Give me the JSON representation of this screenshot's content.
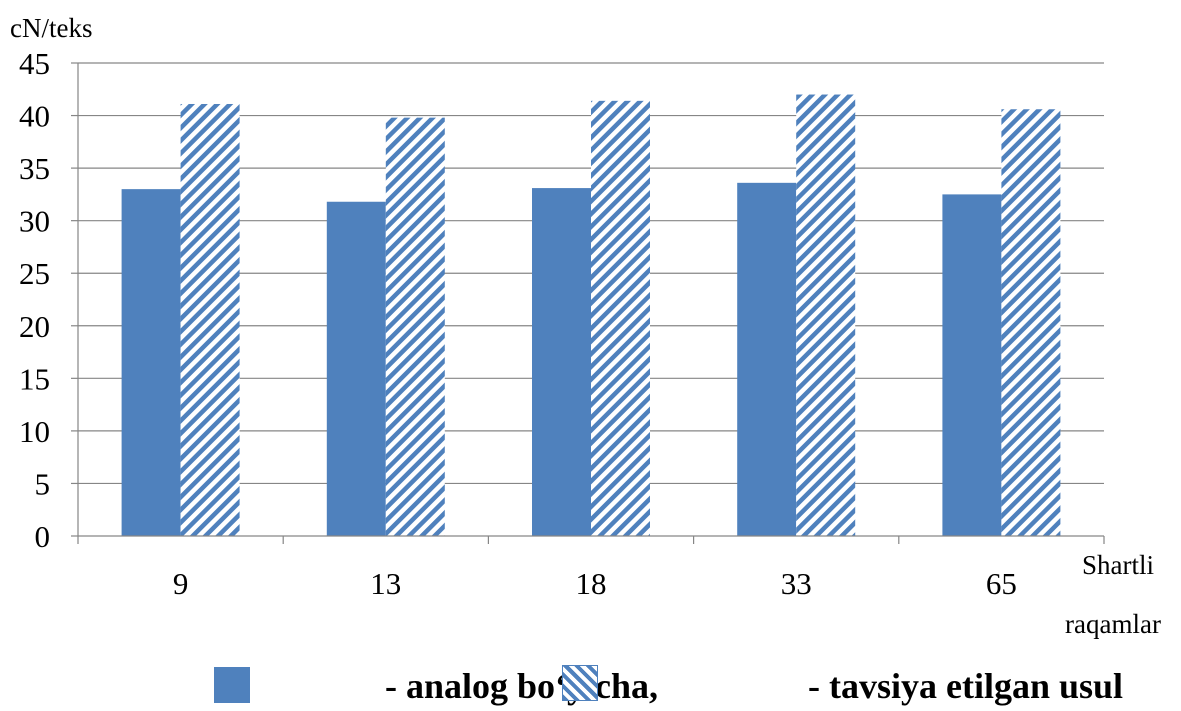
{
  "chart_data": {
    "type": "bar",
    "unit_label": "cN/teks",
    "xlabel_line1": "Shartli",
    "xlabel_line2": "raqamlar",
    "categories": [
      "9",
      "13",
      "18",
      "33",
      "65"
    ],
    "series": [
      {
        "values": [
          33.0,
          31.8,
          33.1,
          33.6,
          32.5
        ],
        "color": "#4f81bd",
        "pattern": "solid"
      },
      {
        "values": [
          41.1,
          39.8,
          41.4,
          42.0,
          40.6
        ],
        "color": "#4f81bd",
        "pattern": "diagonal-hatch"
      }
    ],
    "ylim": [
      0,
      45
    ],
    "yticks": [
      "0",
      "5",
      "10",
      "15",
      "20",
      "25",
      "30",
      "35",
      "40",
      "45"
    ],
    "grid": true
  },
  "legend": {
    "item1_label": "-  analog bo‘yicha,",
    "item2_label": "- tavsiya etilgan usul"
  }
}
